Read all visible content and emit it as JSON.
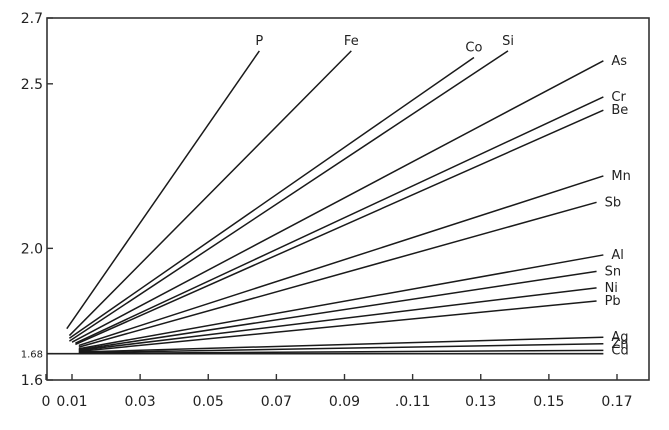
{
  "chart_data": {
    "type": "line",
    "title": "",
    "xlabel": "",
    "ylabel": "",
    "xlim": [
      0,
      0.17
    ],
    "ylim": [
      1.6,
      2.7
    ],
    "grid": false,
    "legend": "none",
    "y_ticks": [
      {
        "value": 2.7,
        "label": "2.7"
      },
      {
        "value": 2.5,
        "label": "2.5"
      },
      {
        "value": 2.0,
        "label": "2.0"
      },
      {
        "value": 1.68,
        "label": "1.68"
      },
      {
        "value": 1.6,
        "label": "1.6"
      }
    ],
    "x_ticks": [
      {
        "value": 0.0,
        "label": "0"
      },
      {
        "value": 0.01,
        "label": "0.01"
      },
      {
        "value": 0.03,
        "label": "0.03"
      },
      {
        "value": 0.05,
        "label": "0.05"
      },
      {
        "value": 0.07,
        "label": "0.07"
      },
      {
        "value": 0.09,
        "label": "0.09"
      },
      {
        "value": 0.11,
        "label": ".0.11"
      },
      {
        "value": 0.13,
        "label": "0.13"
      },
      {
        "value": 0.15,
        "label": "0.15"
      },
      {
        "value": 0.17,
        "label": "0.17"
      }
    ],
    "series": [
      {
        "name": "P",
        "x": [
          0.008,
          0.065
        ],
        "y": [
          1.756,
          2.6
        ]
      },
      {
        "name": "Fe",
        "x": [
          0.009,
          0.092
        ],
        "y": [
          1.735,
          2.6
        ]
      },
      {
        "name": "Co",
        "x": [
          0.009,
          0.128
        ],
        "y": [
          1.727,
          2.58
        ]
      },
      {
        "name": "Si",
        "x": [
          0.009,
          0.138
        ],
        "y": [
          1.718,
          2.6
        ]
      },
      {
        "name": "As",
        "x": [
          0.01,
          0.166
        ],
        "y": [
          1.715,
          2.57
        ]
      },
      {
        "name": "Cr",
        "x": [
          0.011,
          0.166
        ],
        "y": [
          1.712,
          2.46
        ]
      },
      {
        "name": "Be",
        "x": [
          0.011,
          0.166
        ],
        "y": [
          1.708,
          2.42
        ]
      },
      {
        "name": "Mn",
        "x": [
          0.012,
          0.166
        ],
        "y": [
          1.705,
          2.22
        ]
      },
      {
        "name": "Sb",
        "x": [
          0.012,
          0.164
        ],
        "y": [
          1.7,
          2.14
        ]
      },
      {
        "name": "Al",
        "x": [
          0.012,
          0.166
        ],
        "y": [
          1.695,
          1.98
        ]
      },
      {
        "name": "Sn",
        "x": [
          0.012,
          0.164
        ],
        "y": [
          1.692,
          1.93
        ]
      },
      {
        "name": "Ni",
        "x": [
          0.012,
          0.164
        ],
        "y": [
          1.69,
          1.88
        ]
      },
      {
        "name": "Pb",
        "x": [
          0.012,
          0.164
        ],
        "y": [
          1.687,
          1.84
        ]
      },
      {
        "name": "Ag",
        "x": [
          0.012,
          0.166
        ],
        "y": [
          1.685,
          1.73
        ]
      },
      {
        "name": "Zn",
        "x": [
          0.012,
          0.166
        ],
        "y": [
          1.683,
          1.71
        ]
      },
      {
        "name": "Cd",
        "x": [
          0.012,
          0.166
        ],
        "y": [
          1.681,
          1.69
        ]
      }
    ]
  }
}
